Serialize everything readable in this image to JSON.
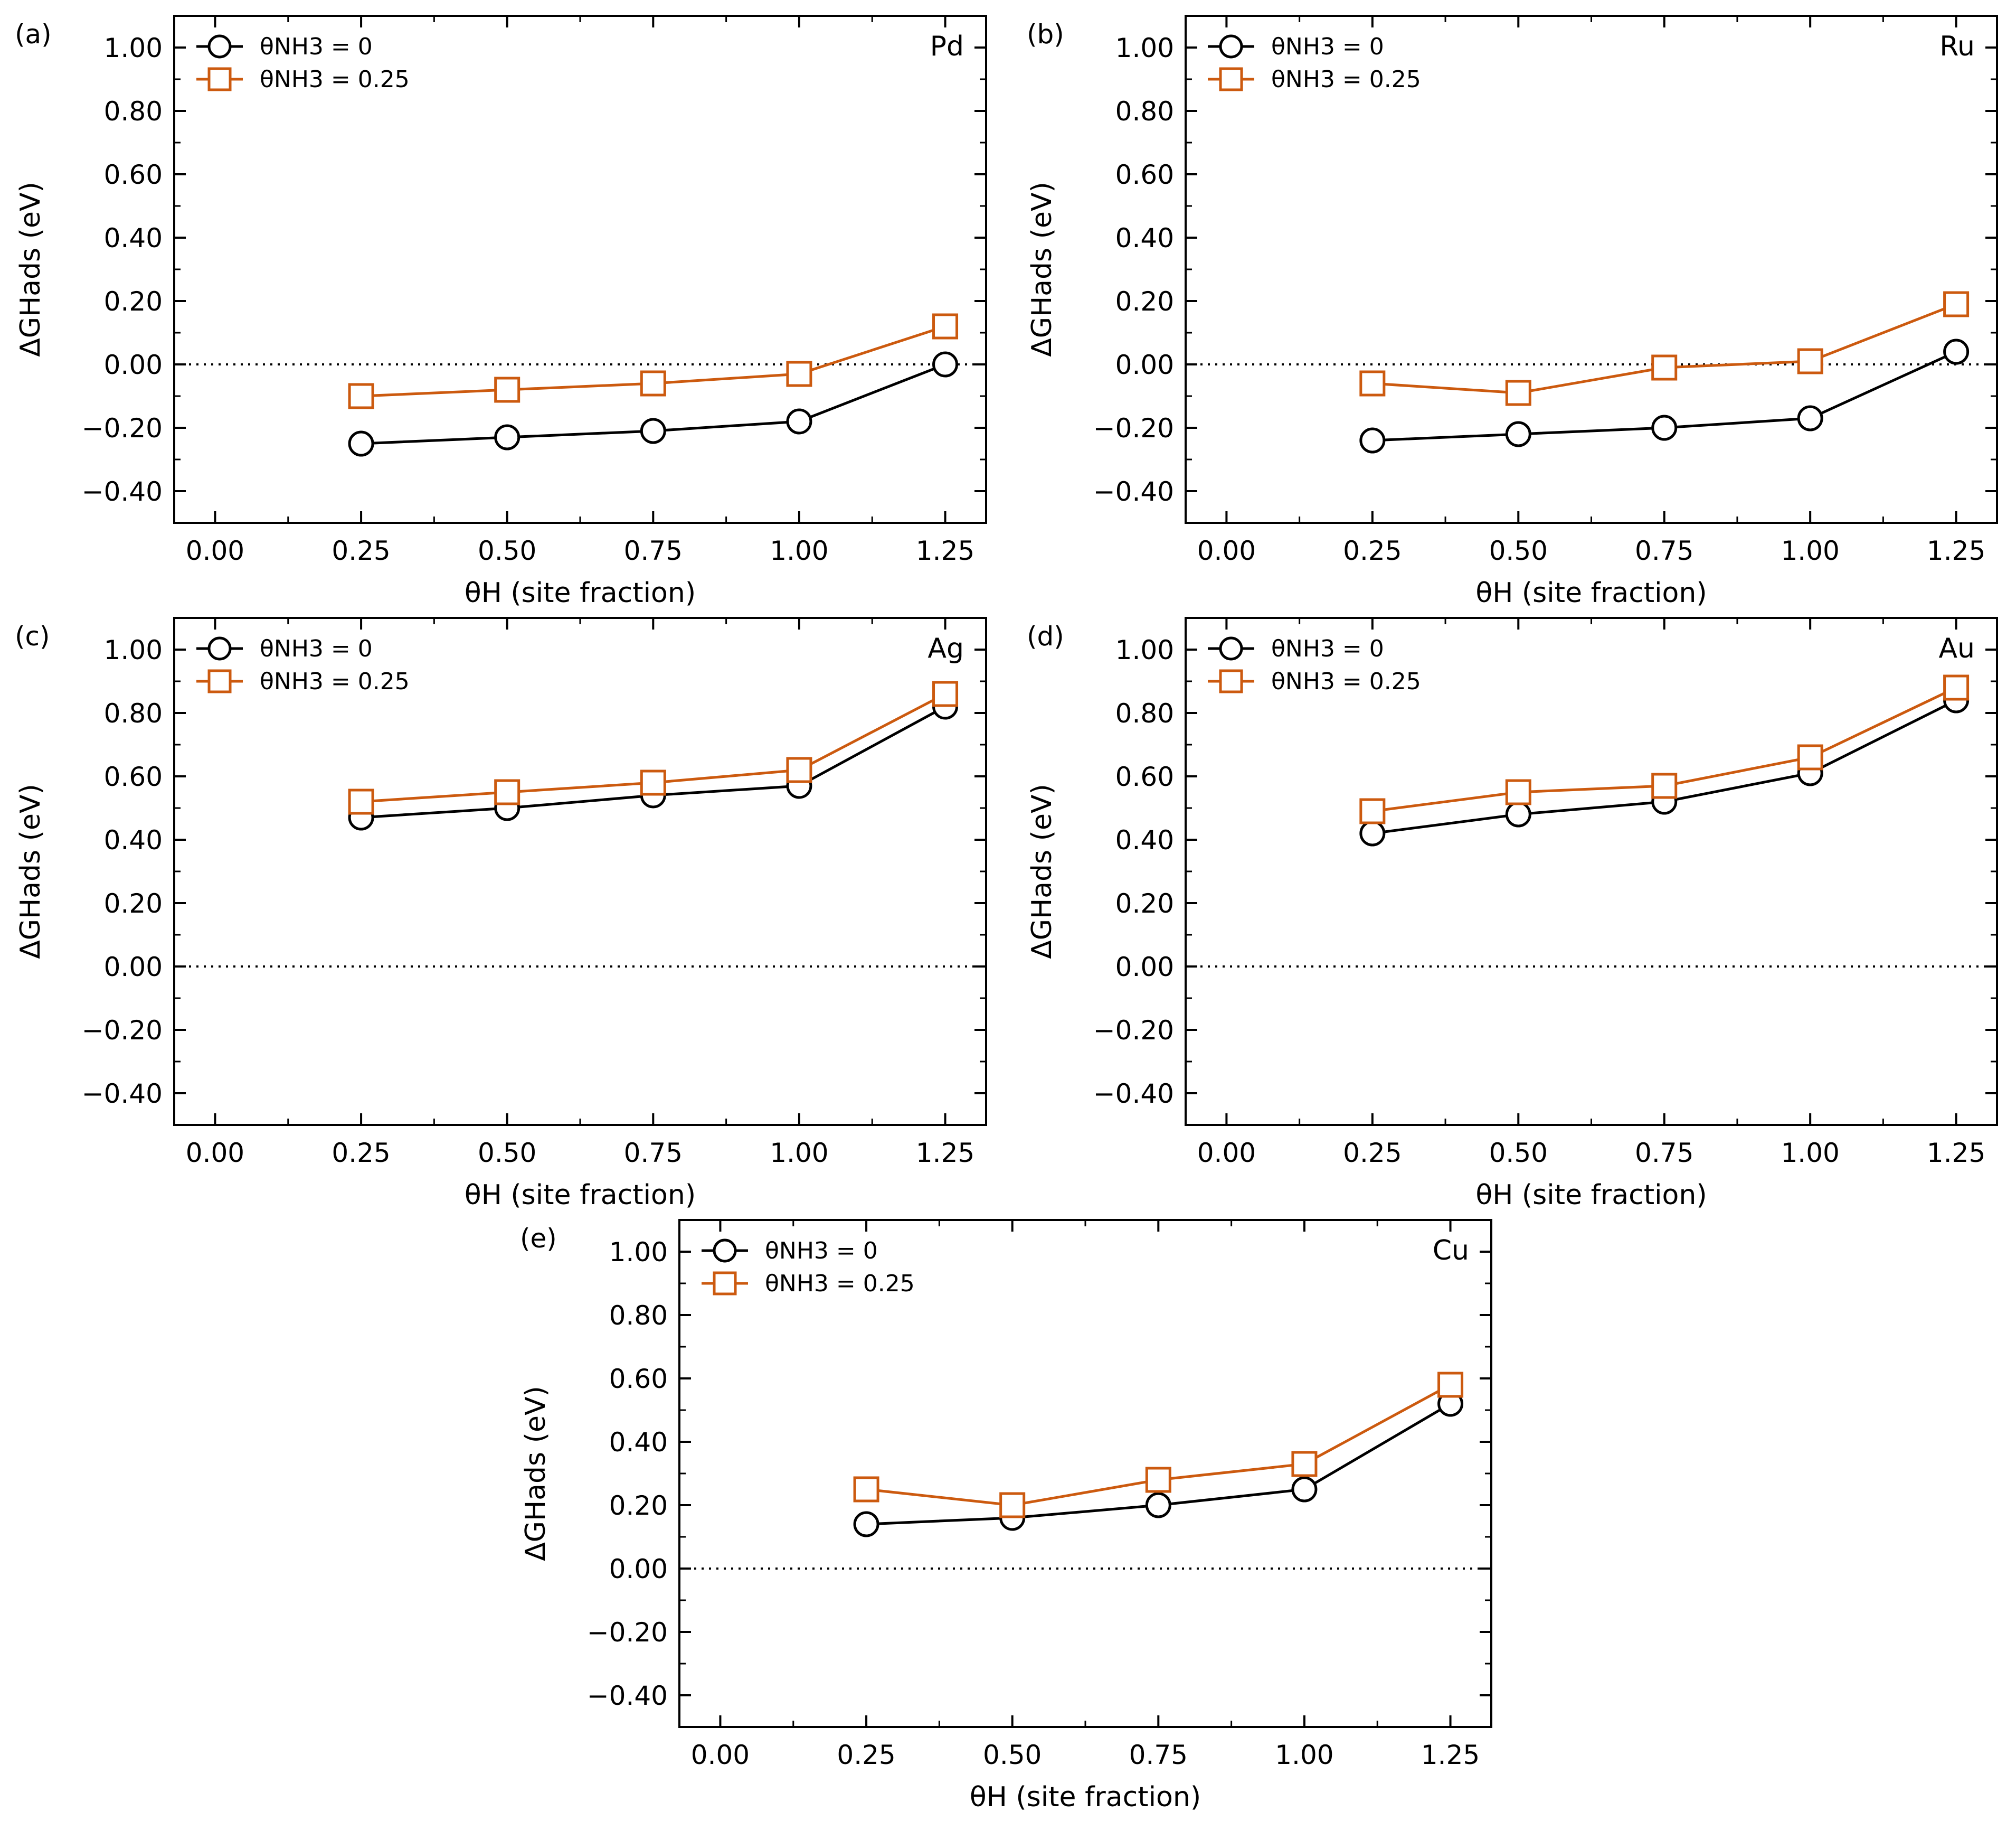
{
  "colors": {
    "series0": "#000000",
    "series1": "#cc5a0f",
    "zero_line": "#000000"
  },
  "panel_letters": [
    "(a)",
    "(b)",
    "(c)",
    "(d)",
    "(e)"
  ],
  "chart_data": [
    {
      "type": "line",
      "panel": "(a)",
      "annotation": "Pd",
      "xlabel": "θH (site fraction)",
      "ylabel": "ΔGHads (eV)",
      "xlim": [
        -0.07,
        1.32
      ],
      "ylim": [
        -0.5,
        1.1
      ],
      "x_ticks": [
        "0.00",
        "0.25",
        "0.50",
        "0.75",
        "1.00",
        "1.25"
      ],
      "y_ticks": [
        "−0.40",
        "−0.20",
        "0.00",
        "0.20",
        "0.40",
        "0.60",
        "0.80",
        "1.00"
      ],
      "x": [
        0.25,
        0.5,
        0.75,
        1.0,
        1.25
      ],
      "series": [
        {
          "name": "θNH3 = 0",
          "marker": "circle",
          "values": [
            -0.25,
            -0.23,
            -0.21,
            -0.18,
            0.0
          ]
        },
        {
          "name": "θNH3 = 0.25",
          "marker": "square",
          "values": [
            -0.1,
            -0.08,
            -0.06,
            -0.03,
            0.12
          ]
        }
      ],
      "reference_line": 0.0,
      "legend_position": "top-left",
      "grid": false
    },
    {
      "type": "line",
      "panel": "(b)",
      "annotation": "Ru",
      "xlabel": "θH (site fraction)",
      "ylabel": "ΔGHads (eV)",
      "xlim": [
        -0.07,
        1.32
      ],
      "ylim": [
        -0.5,
        1.1
      ],
      "x_ticks": [
        "0.00",
        "0.25",
        "0.50",
        "0.75",
        "1.00",
        "1.25"
      ],
      "y_ticks": [
        "−0.40",
        "−0.20",
        "0.00",
        "0.20",
        "0.40",
        "0.60",
        "0.80",
        "1.00"
      ],
      "x": [
        0.25,
        0.5,
        0.75,
        1.0,
        1.25
      ],
      "series": [
        {
          "name": "θNH3 = 0",
          "marker": "circle",
          "values": [
            -0.24,
            -0.22,
            -0.2,
            -0.17,
            0.04
          ]
        },
        {
          "name": "θNH3 = 0.25",
          "marker": "square",
          "values": [
            -0.06,
            -0.09,
            -0.01,
            0.01,
            0.19
          ]
        }
      ],
      "reference_line": 0.0,
      "legend_position": "top-left",
      "grid": false
    },
    {
      "type": "line",
      "panel": "(c)",
      "annotation": "Ag",
      "xlabel": "θH (site fraction)",
      "ylabel": "ΔGHads (eV)",
      "xlim": [
        -0.07,
        1.32
      ],
      "ylim": [
        -0.5,
        1.1
      ],
      "x_ticks": [
        "0.00",
        "0.25",
        "0.50",
        "0.75",
        "1.00",
        "1.25"
      ],
      "y_ticks": [
        "−0.40",
        "−0.20",
        "0.00",
        "0.20",
        "0.40",
        "0.60",
        "0.80",
        "1.00"
      ],
      "x": [
        0.25,
        0.5,
        0.75,
        1.0,
        1.25
      ],
      "series": [
        {
          "name": "θNH3 = 0",
          "marker": "circle",
          "values": [
            0.47,
            0.5,
            0.54,
            0.57,
            0.82
          ]
        },
        {
          "name": "θNH3 = 0.25",
          "marker": "square",
          "values": [
            0.52,
            0.55,
            0.58,
            0.62,
            0.86
          ]
        }
      ],
      "reference_line": 0.0,
      "legend_position": "top-left",
      "grid": false
    },
    {
      "type": "line",
      "panel": "(d)",
      "annotation": "Au",
      "xlabel": "θH (site fraction)",
      "ylabel": "ΔGHads (eV)",
      "xlim": [
        -0.07,
        1.32
      ],
      "ylim": [
        -0.5,
        1.1
      ],
      "x_ticks": [
        "0.00",
        "0.25",
        "0.50",
        "0.75",
        "1.00",
        "1.25"
      ],
      "y_ticks": [
        "−0.40",
        "−0.20",
        "0.00",
        "0.20",
        "0.40",
        "0.60",
        "0.80",
        "1.00"
      ],
      "x": [
        0.25,
        0.5,
        0.75,
        1.0,
        1.25
      ],
      "series": [
        {
          "name": "θNH3 = 0",
          "marker": "circle",
          "values": [
            0.42,
            0.48,
            0.52,
            0.61,
            0.84
          ]
        },
        {
          "name": "θNH3 = 0.25",
          "marker": "square",
          "values": [
            0.49,
            0.55,
            0.57,
            0.66,
            0.88
          ]
        }
      ],
      "reference_line": 0.0,
      "legend_position": "top-left",
      "grid": false
    },
    {
      "type": "line",
      "panel": "(e)",
      "annotation": "Cu",
      "xlabel": "θH (site fraction)",
      "ylabel": "ΔGHads (eV)",
      "xlim": [
        -0.07,
        1.32
      ],
      "ylim": [
        -0.5,
        1.1
      ],
      "x_ticks": [
        "0.00",
        "0.25",
        "0.50",
        "0.75",
        "1.00",
        "1.25"
      ],
      "y_ticks": [
        "−0.40",
        "−0.20",
        "0.00",
        "0.20",
        "0.40",
        "0.60",
        "0.80",
        "1.00"
      ],
      "x": [
        0.25,
        0.5,
        0.75,
        1.0,
        1.25
      ],
      "series": [
        {
          "name": "θNH3 = 0",
          "marker": "circle",
          "values": [
            0.14,
            0.16,
            0.2,
            0.25,
            0.52
          ]
        },
        {
          "name": "θNH3 = 0.25",
          "marker": "square",
          "values": [
            0.25,
            0.2,
            0.28,
            0.33,
            0.58
          ]
        }
      ],
      "reference_line": 0.0,
      "legend_position": "top-left",
      "grid": false
    }
  ]
}
